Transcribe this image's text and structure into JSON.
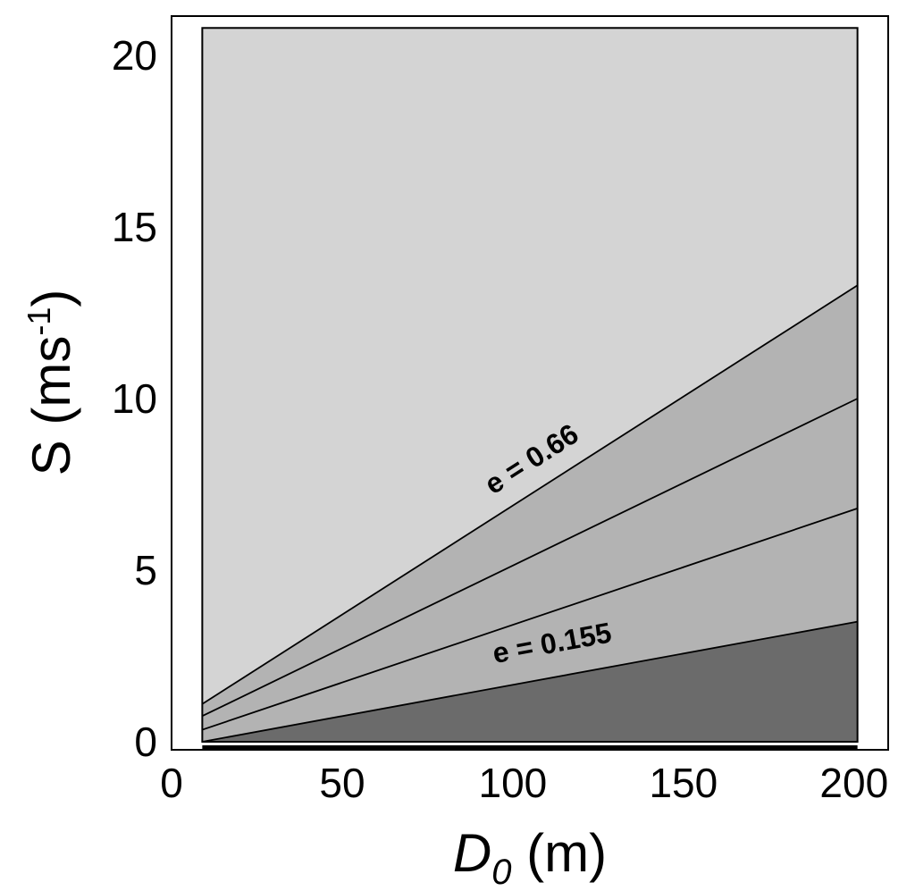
{
  "chart_data": {
    "type": "area",
    "title": "",
    "xlabel": {
      "main": "D",
      "subscript": "0",
      "unit": "(m)"
    },
    "ylabel": {
      "main": "S (ms",
      "superscript": "-1",
      "close": ")"
    },
    "xlim": [
      0,
      210
    ],
    "ylim": [
      0,
      21
    ],
    "x_ticks": [
      0,
      50,
      100,
      150,
      200
    ],
    "y_ticks": [
      0,
      5,
      10,
      15,
      20
    ],
    "x_tick_labels": [
      "0",
      "50",
      "100",
      "150",
      "200"
    ],
    "y_tick_labels": [
      "0",
      "5",
      "10",
      "15",
      "20"
    ],
    "domain_x": [
      9,
      201
    ],
    "domain_ymax": 20.8,
    "grid": false,
    "boundary_lines": [
      {
        "x": [
          9,
          201
        ],
        "y": [
          1.1,
          13.3
        ]
      },
      {
        "x": [
          9,
          201
        ],
        "y": [
          0.75,
          10.0
        ]
      },
      {
        "x": [
          9,
          201
        ],
        "y": [
          0.35,
          6.8
        ]
      },
      {
        "x": [
          9,
          201
        ],
        "y": [
          0.0,
          3.5
        ]
      }
    ],
    "region_colors": [
      "#d4d4d4",
      "#b3b3b3",
      "#b3b3b3",
      "#b3b3b3",
      "#6b6b6b"
    ],
    "annotations": [
      {
        "text": "e = 0.66",
        "x": 107,
        "y": 8.0,
        "line_index": 0
      },
      {
        "text": "e = 0.155",
        "x": 112,
        "y": 2.6,
        "line_index": 3
      }
    ]
  }
}
